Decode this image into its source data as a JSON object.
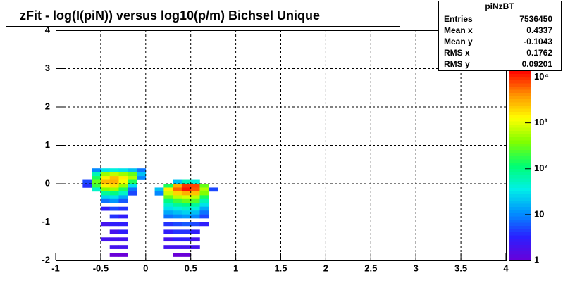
{
  "chart_data": {
    "type": "heatmap",
    "title": "zFit - log(I(piN)) versus log10(p/m) Bichsel Unique",
    "xlim": [
      -1,
      4
    ],
    "xticks": [
      -1,
      -0.5,
      0,
      0.5,
      1,
      1.5,
      2,
      2.5,
      3,
      3.5,
      4
    ],
    "ylim": [
      -2,
      4
    ],
    "yticks": [
      -2,
      -1,
      0,
      1,
      2,
      3,
      4
    ],
    "grid": true,
    "log_z": true,
    "zlim": [
      1,
      14000
    ],
    "zticks": [
      1,
      10,
      {
        "value": 100,
        "label": "10²"
      },
      {
        "value": 1000,
        "label": "10³"
      },
      {
        "value": 10000,
        "label": "10⁴"
      }
    ],
    "palette": [
      "#6a00d8",
      "#2a20ff",
      "#0090ff",
      "#00f0e8",
      "#00ff70",
      "#80ff00",
      "#ffff00",
      "#ff9000",
      "#ff0000"
    ],
    "x": [
      -0.55,
      -0.45,
      -0.35,
      -0.25,
      -0.15,
      -0.05,
      -0.55,
      -0.45,
      -0.35,
      -0.25,
      -0.15,
      -0.05,
      -0.55,
      -0.45,
      -0.35,
      -0.25,
      -0.15,
      -0.05,
      -0.65,
      -0.55,
      -0.45,
      -0.35,
      -0.25,
      -0.15,
      -0.65,
      -0.55,
      -0.45,
      -0.35,
      -0.25,
      -0.15,
      -0.55,
      -0.45,
      -0.35,
      -0.25,
      -0.15,
      -0.45,
      -0.35,
      -0.25,
      -0.15,
      -0.45,
      -0.35,
      -0.25,
      -0.45,
      -0.35,
      -0.25,
      -0.45,
      -0.35,
      -0.25,
      -0.35,
      -0.25,
      -0.45,
      -0.35,
      -0.25,
      -0.35,
      -0.25,
      -0.45,
      -0.35,
      -0.25,
      -0.35,
      -0.25,
      -0.35,
      -0.25,
      0.35,
      0.45,
      0.55,
      0.25,
      0.35,
      0.45,
      0.55,
      0.65,
      0.15,
      0.25,
      0.35,
      0.45,
      0.55,
      0.65,
      0.75,
      0.15,
      0.25,
      0.35,
      0.45,
      0.55,
      0.65,
      0.25,
      0.35,
      0.45,
      0.55,
      0.65,
      0.25,
      0.35,
      0.45,
      0.55,
      0.65,
      0.25,
      0.35,
      0.45,
      0.55,
      0.65,
      0.25,
      0.35,
      0.45,
      0.55,
      0.65,
      0.25,
      0.35,
      0.45,
      0.55,
      0.65,
      0.25,
      0.35,
      0.45,
      0.55,
      0.65,
      0.25,
      0.35,
      0.45,
      0.55,
      0.65,
      0.25,
      0.35,
      0.45,
      0.55,
      0.25,
      0.35,
      0.45,
      0.55,
      0.25,
      0.35,
      0.45,
      0.55,
      0.35,
      0.45
    ],
    "y": [
      0.35,
      0.35,
      0.35,
      0.35,
      0.35,
      0.35,
      0.25,
      0.25,
      0.25,
      0.25,
      0.25,
      0.25,
      0.15,
      0.15,
      0.15,
      0.15,
      0.15,
      0.15,
      0.05,
      0.05,
      0.05,
      0.05,
      0.05,
      0.05,
      -0.05,
      -0.05,
      -0.05,
      -0.05,
      -0.05,
      -0.05,
      -0.15,
      -0.15,
      -0.15,
      -0.15,
      -0.15,
      -0.25,
      -0.25,
      -0.25,
      -0.25,
      -0.35,
      -0.35,
      -0.35,
      -0.45,
      -0.45,
      -0.45,
      -0.65,
      -0.65,
      -0.65,
      -0.85,
      -0.85,
      -1.05,
      -1.05,
      -1.05,
      -1.25,
      -1.25,
      -1.45,
      -1.45,
      -1.45,
      -1.65,
      -1.65,
      -1.85,
      -1.85,
      0.05,
      0.05,
      0.05,
      -0.05,
      -0.05,
      -0.05,
      -0.05,
      -0.05,
      -0.15,
      -0.15,
      -0.15,
      -0.15,
      -0.15,
      -0.15,
      -0.15,
      -0.25,
      -0.25,
      -0.25,
      -0.25,
      -0.25,
      -0.25,
      -0.35,
      -0.35,
      -0.35,
      -0.35,
      -0.35,
      -0.45,
      -0.45,
      -0.45,
      -0.45,
      -0.45,
      -0.55,
      -0.55,
      -0.55,
      -0.55,
      -0.55,
      -0.65,
      -0.65,
      -0.65,
      -0.65,
      -0.65,
      -0.75,
      -0.75,
      -0.75,
      -0.75,
      -0.75,
      -0.85,
      -0.85,
      -0.85,
      -0.85,
      -0.85,
      -1.05,
      -1.05,
      -1.05,
      -1.05,
      -1.05,
      -1.25,
      -1.25,
      -1.25,
      -1.25,
      -1.45,
      -1.45,
      -1.45,
      -1.45,
      -1.65,
      -1.65,
      -1.65,
      -1.65,
      -1.85,
      -1.85
    ],
    "values": [
      10,
      30,
      40,
      30,
      20,
      8,
      60,
      500,
      700,
      500,
      300,
      20,
      150,
      1500,
      2500,
      1500,
      600,
      10,
      5,
      300,
      2800,
      3000,
      1200,
      150,
      4,
      200,
      1500,
      1800,
      500,
      30,
      50,
      400,
      500,
      150,
      8,
      80,
      100,
      50,
      5,
      25,
      30,
      15,
      8,
      12,
      6,
      3,
      5,
      4,
      4,
      3,
      2,
      3,
      3,
      2,
      3,
      2,
      2,
      2,
      2,
      2,
      1,
      1,
      20,
      60,
      40,
      150,
      3000,
      9000,
      8000,
      300,
      20,
      1500,
      6000,
      12000,
      7000,
      600,
      5,
      10,
      800,
      2000,
      3000,
      2500,
      400,
      300,
      700,
      900,
      700,
      150,
      100,
      200,
      300,
      250,
      60,
      50,
      80,
      100,
      80,
      30,
      30,
      40,
      50,
      40,
      15,
      15,
      20,
      25,
      20,
      8,
      8,
      10,
      12,
      10,
      5,
      4,
      5,
      6,
      5,
      3,
      3,
      4,
      4,
      3,
      2,
      3,
      3,
      2,
      2,
      2,
      2,
      2,
      1,
      1
    ],
    "stats": {
      "title": "piNzBT",
      "rows": [
        [
          "Entries",
          "7536450"
        ],
        [
          "Mean x",
          "0.4337"
        ],
        [
          "Mean y",
          "-0.1043"
        ],
        [
          "RMS x",
          "0.1762"
        ],
        [
          "RMS y",
          "0.09201"
        ]
      ]
    }
  }
}
